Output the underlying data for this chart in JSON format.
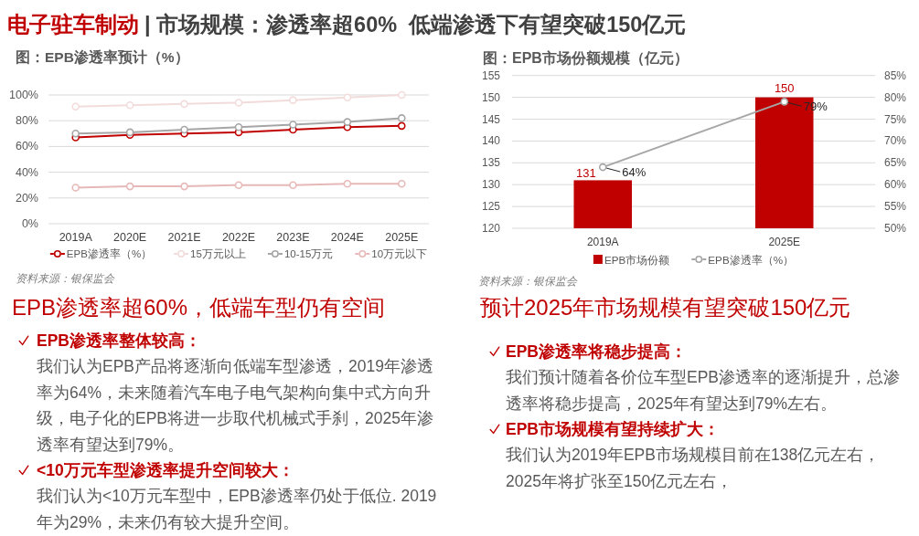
{
  "chart_data": [
    {
      "type": "other",
      "title": "电子驻车制动",
      "subtitle": "| 市场规模：渗透率超60%  低端渗透下有望突破150亿元"
    },
    {
      "type": "line",
      "title": "图：EPB渗透率预计（%）",
      "categories": [
        "2019A",
        "2020E",
        "2021E",
        "2022E",
        "2023E",
        "2024E",
        "2025E"
      ],
      "series": [
        {
          "name": "EPB渗透率（%）",
          "color": "#c00000",
          "values": [
            67,
            69,
            70,
            71,
            73,
            75,
            76
          ]
        },
        {
          "name": "15万元以上",
          "color": "#f2dcdb",
          "values": [
            91,
            92,
            93,
            94,
            96,
            98,
            100
          ]
        },
        {
          "name": "10-15万元",
          "color": "#a6a6a6",
          "values": [
            70,
            71,
            73,
            75,
            77,
            79,
            82
          ]
        },
        {
          "name": "10万元以下",
          "color": "#e6b9b8",
          "values": [
            28,
            29,
            29,
            30,
            30,
            31,
            31
          ]
        }
      ],
      "ylim": [
        0,
        100
      ],
      "yticks": [
        {
          "value": 0,
          "label": "0%"
        },
        {
          "value": 20,
          "label": "20%"
        },
        {
          "value": 40,
          "label": "40%"
        },
        {
          "value": 60,
          "label": "60%"
        },
        {
          "value": 80,
          "label": "80%"
        },
        {
          "value": 100,
          "label": "100%"
        }
      ],
      "grid": "y",
      "legend": "bottom",
      "marker": "circle",
      "line_style": "solid",
      "annotations": [
        "资料来源：银保监会"
      ]
    },
    {
      "type": "bar",
      "title": "图：EPB市场份额规模（亿元）",
      "categories": [
        "2019A",
        "2025E"
      ],
      "series": [
        {
          "name": "EPB市场份额",
          "color": "#c00000",
          "values": [
            131,
            150
          ],
          "value_labels": [
            "131",
            "150"
          ]
        },
        {
          "name": "EPB渗透率（%）",
          "type": "line",
          "axis": "y2",
          "color": "#a6a6a6",
          "marker": "circle",
          "values": [
            64,
            79
          ],
          "value_labels": [
            "64%",
            "79%"
          ]
        }
      ],
      "ylim": [
        120,
        155
      ],
      "yticks": [
        120,
        125,
        130,
        135,
        140,
        145,
        150,
        155
      ],
      "y2lim": [
        50,
        85
      ],
      "y2ticks": [
        {
          "value": 50,
          "label": "50%"
        },
        {
          "value": 55,
          "label": "55%"
        },
        {
          "value": 60,
          "label": "60%"
        },
        {
          "value": 65,
          "label": "65%"
        },
        {
          "value": 70,
          "label": "70%"
        },
        {
          "value": 75,
          "label": "75%"
        },
        {
          "value": 80,
          "label": "80%"
        },
        {
          "value": 85,
          "label": "85%"
        }
      ],
      "grid": "y",
      "legend": "bottom",
      "annotations": [
        "资料来源：银保监会"
      ]
    },
    {
      "type": "other",
      "title": "EPB渗透率超60%，低端车型仍有空间",
      "annotations": [
        "EPB渗透率整体较高：",
        "我们认为EPB产品将逐渐向低端车型渗透，2019年渗透率为64%，未来随着汽车电子电气架构向集中式方向升级，电子化的EPB将进一步取代机械式手刹，2025年渗透率有望达到79%。",
        "<10万元车型渗透率提升空间较大：",
        "我们认为<10万元车型中，EPB渗透率仍处于低位. 2019年为29%，未来仍有较大提升空间。"
      ]
    },
    {
      "type": "other",
      "title": "预计2025年市场规模有望突破150亿元",
      "annotations": [
        "EPB渗透率将稳步提高：",
        "我们预计随着各价位车型EPB渗透率的逐渐提升，总渗透率将稳步提高，2025年有望达到79%左右。",
        "EPB市场规模有望持续扩大：",
        "我们认为2019年EPB市场规模目前在138亿元左右，2025年将扩张至150亿元左右，"
      ]
    }
  ]
}
